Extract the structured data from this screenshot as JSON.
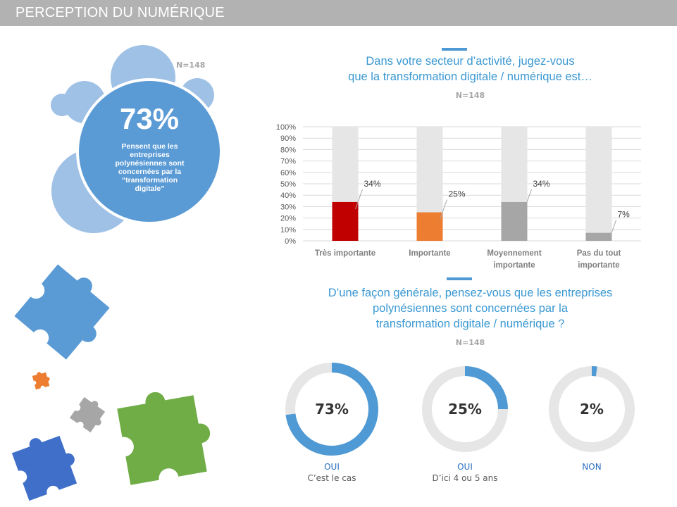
{
  "header": {
    "title": "PERCEPTION DU NUMÉRIQUE"
  },
  "bubble": {
    "n": "N=148",
    "pct": "73%",
    "text_lines": [
      "Pensent que les",
      "entreprises",
      "polynésiennes sont",
      "concernées par la",
      "“transformation",
      "digitale”"
    ]
  },
  "question1": {
    "title_lines": [
      "Dans votre secteur d’activité, jugez-vous",
      "que la transformation digitale / numérique est…"
    ],
    "n": "N=148"
  },
  "question2": {
    "title_lines": [
      "D’une façon générale, pensez-vous que les entreprises",
      "polynésiennes sont concernées par la",
      "transformation digitale / numérique ?"
    ],
    "n": "N=148"
  },
  "colors": {
    "accent": "#4f9ad5",
    "red": "#c00000",
    "orange": "#ed7d31",
    "grey": "#a6a6a6",
    "track": "#e6e6e6"
  },
  "chart_data": [
    {
      "type": "bar",
      "title": "Dans votre secteur d’activité, jugez-vous que la transformation digitale / numérique est…",
      "categories": [
        "Très importante",
        "Importante",
        "Moyennement importante",
        "Pas du tout importante"
      ],
      "category_lines": [
        [
          "Très importante"
        ],
        [
          "Importante"
        ],
        [
          "Moyennement",
          "importante"
        ],
        [
          "Pas du tout",
          "importante"
        ]
      ],
      "values": [
        34,
        25,
        34,
        7
      ],
      "labels": [
        "34%",
        "25%",
        "34%",
        "7%"
      ],
      "colors": [
        "#c00000",
        "#ed7d31",
        "#a6a6a6",
        "#a6a6a6"
      ],
      "ylim": [
        0,
        100
      ],
      "yticks": [
        "0%",
        "10%",
        "20%",
        "30%",
        "40%",
        "50%",
        "60%",
        "70%",
        "80%",
        "90%",
        "100%"
      ],
      "grid": true
    },
    {
      "type": "pie",
      "title": "D’une façon générale, pensez-vous que les entreprises polynésiennes sont concernées par la transformation digitale / numérique ?",
      "items": [
        {
          "value": 73,
          "label": "73%",
          "name": "OUI",
          "sub": "C’est le cas"
        },
        {
          "value": 25,
          "label": "25%",
          "name": "OUI",
          "sub": "D’ici 4 ou 5 ans"
        },
        {
          "value": 2,
          "label": "2%",
          "name": "NON",
          "sub": ""
        }
      ]
    }
  ]
}
